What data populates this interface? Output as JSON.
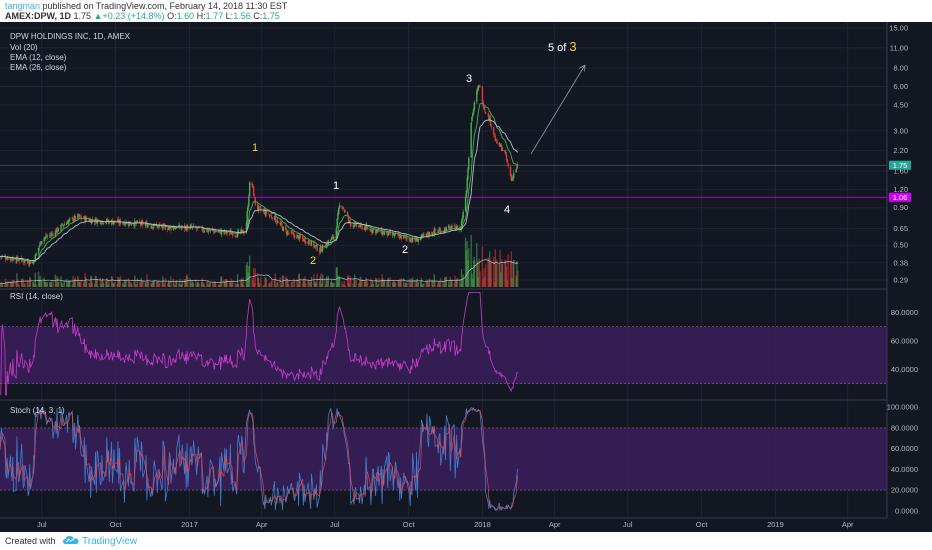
{
  "header": {
    "author": "tangman",
    "published": " published on TradingView.com, February 14, 2018 11:30 EST",
    "symbol": "AMEX:DPW, 1D",
    "last": "1.75",
    "change": "+0.23 (+14.8%)",
    "o_label": "O:",
    "o": "1.60",
    "h_label": "H:",
    "h": "1.77",
    "l_label": "L:",
    "l": "1.56",
    "c_label": "C:",
    "c": "1.75"
  },
  "legend": {
    "title": "DPW HOLDINGS INC, 1D, AMEX",
    "vol": "Vol (20)",
    "ema12": "EMA (12, close)",
    "ema26": "EMA (26, close)"
  },
  "footer": {
    "created_with": "Created with",
    "brand": "TradingView"
  },
  "colors": {
    "background": "#131722",
    "up": "#26a69a",
    "down": "#ef5350",
    "candle_up": "#4caf50",
    "candle_down": "#e53935",
    "price_line": "#3d4a5c",
    "magenta_line": "#d500f9",
    "rsi_line": "#c83cc8",
    "stoch_k": "#3f7fd1",
    "stoch_d": "#e0484a",
    "band": "#3a1f5c",
    "ema12": "#4caf50",
    "ema26": "#b0bec5",
    "wave_yellow": "#f4d03f",
    "wave_white": "#ffffff",
    "text": "#b2b5be"
  },
  "chart_data": [
    {
      "type": "candlestick",
      "pane": "price",
      "scale": "log",
      "ylim": [
        0.26,
        15
      ],
      "y_ticks": [
        "15.00",
        "11.00",
        "8.00",
        "6.00",
        "4.50",
        "3.00",
        "2.20",
        "1.60",
        "1.20",
        "0.90",
        "0.65",
        "0.50",
        "0.38",
        "0.29"
      ],
      "y_tick_values": [
        15,
        11,
        8,
        6,
        4.5,
        3,
        2.2,
        1.6,
        1.2,
        0.9,
        0.65,
        0.5,
        0.38,
        0.29
      ],
      "x_ticks": [
        "Jul",
        "Oct",
        "2017",
        "Apr",
        "Jul",
        "Oct",
        "2018",
        "Apr",
        "Jul",
        "Oct",
        "2019",
        "Apr"
      ],
      "x_tick_dates": [
        "2016-07-01",
        "2016-10-01",
        "2017-01-01",
        "2017-04-01",
        "2017-07-01",
        "2017-10-01",
        "2018-01-01",
        "2018-04-01",
        "2018-07-01",
        "2018-10-01",
        "2019-01-01",
        "2019-04-01"
      ],
      "x_range": [
        "2016-05-10",
        "2019-05-20"
      ],
      "price_path": [
        [
          "2016-05-10",
          0.42
        ],
        [
          "2016-06-01",
          0.4
        ],
        [
          "2016-06-20",
          0.38
        ],
        [
          "2016-07-01",
          0.55
        ],
        [
          "2016-07-15",
          0.6
        ],
        [
          "2016-08-01",
          0.72
        ],
        [
          "2016-08-15",
          0.78
        ],
        [
          "2016-09-01",
          0.74
        ],
        [
          "2016-10-01",
          0.72
        ],
        [
          "2016-11-01",
          0.7
        ],
        [
          "2016-12-01",
          0.66
        ],
        [
          "2017-01-01",
          0.66
        ],
        [
          "2017-02-01",
          0.62
        ],
        [
          "2017-03-01",
          0.6
        ],
        [
          "2017-03-12",
          0.62
        ],
        [
          "2017-03-18",
          1.5
        ],
        [
          "2017-03-25",
          0.9
        ],
        [
          "2017-04-15",
          0.78
        ],
        [
          "2017-05-01",
          0.62
        ],
        [
          "2017-06-01",
          0.52
        ],
        [
          "2017-06-12",
          0.46
        ],
        [
          "2017-07-01",
          0.58
        ],
        [
          "2017-07-08",
          1.0
        ],
        [
          "2017-07-20",
          0.7
        ],
        [
          "2017-08-15",
          0.64
        ],
        [
          "2017-09-15",
          0.58
        ],
        [
          "2017-10-10",
          0.54
        ],
        [
          "2017-11-01",
          0.62
        ],
        [
          "2017-11-20",
          0.65
        ],
        [
          "2017-12-05",
          0.66
        ],
        [
          "2017-12-12",
          1.2
        ],
        [
          "2017-12-18",
          3.5
        ],
        [
          "2017-12-24",
          5.2
        ],
        [
          "2017-12-28",
          6.2
        ],
        [
          "2018-01-03",
          4.3
        ],
        [
          "2018-01-10",
          3.6
        ],
        [
          "2018-01-18",
          2.5
        ],
        [
          "2018-01-28",
          2.2
        ],
        [
          "2018-02-06",
          1.4
        ],
        [
          "2018-02-10",
          1.6
        ],
        [
          "2018-02-14",
          1.75
        ]
      ],
      "last_price": 1.75,
      "horizontal_level": 1.06,
      "horizontal_level_label": "1.06",
      "last_price_label": "1.75"
    },
    {
      "type": "bar",
      "pane": "volume",
      "series": [
        {
          "name": "Vol (20)"
        }
      ]
    },
    {
      "type": "line",
      "pane": "rsi",
      "title": "RSI (14, close)",
      "ylim": [
        20,
        95
      ],
      "y_ticks": [
        "80.0000",
        "60.0000",
        "40.0000"
      ],
      "y_tick_values": [
        80,
        60,
        40
      ],
      "band": [
        30,
        70
      ]
    },
    {
      "type": "line",
      "pane": "stoch",
      "title": "Stoch (14, 3, 1)",
      "ylim": [
        -5,
        105
      ],
      "y_ticks": [
        "100.0000",
        "80.0000",
        "60.0000",
        "40.0000",
        "20.0000",
        "0.0000"
      ],
      "y_tick_values": [
        100,
        80,
        60,
        40,
        20,
        0
      ],
      "band": [
        20,
        80
      ]
    }
  ],
  "annotations": {
    "wave1_major": "1",
    "wave2_major": "2",
    "wave1_minor": "1",
    "wave2_minor": "2",
    "wave3": "3",
    "wave4": "4",
    "projection_prefix": "5 of ",
    "projection_highlight": "3"
  }
}
